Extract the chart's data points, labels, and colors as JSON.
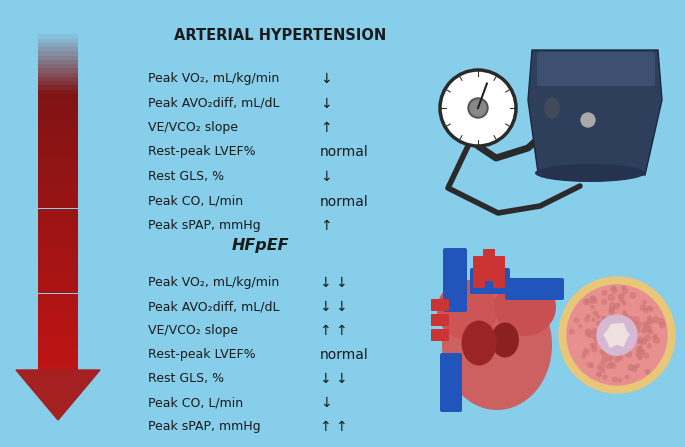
{
  "bg_color": "#87CEEB",
  "title1": "ARTERIAL HYPERTENSION",
  "title2": "HFpEF",
  "section1_labels": [
    "Peak VO₂, mL/kg/min",
    "Peak AVO₂diff, mL/dL",
    "VE/VCO₂ slope",
    "Rest-peak LVEF%",
    "Rest GLS, %",
    "Peak CO, L/min",
    "Peak sPAP, mmHg"
  ],
  "section1_values": [
    "↓",
    "↓",
    "↑",
    "normal",
    "↓",
    "normal",
    "↑"
  ],
  "section2_labels": [
    "Peak VO₂, mL/kg/min",
    "Peak AVO₂diff, mL/dL",
    "VE/VCO₂ slope",
    "Rest-peak LVEF%",
    "Rest GLS, %",
    "Peak CO, L/min",
    "Peak sPAP, mmHg"
  ],
  "section2_values": [
    "↓ ↓",
    "↓ ↓",
    "↑ ↑",
    "normal",
    "↓ ↓",
    "↓",
    "↑ ↑"
  ],
  "text_color": "#1a1a1a",
  "title_fontsize": 10.5,
  "label_fontsize": 9,
  "value_fontsize": 10
}
